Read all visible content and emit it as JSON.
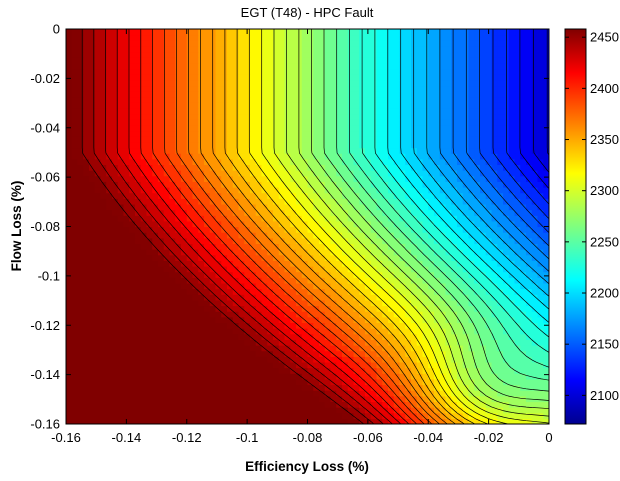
{
  "chart_data": {
    "type": "heatmap",
    "subtype": "filled-contour",
    "title": "EGT (T48) - HPC Fault",
    "xlabel": "Efficiency Loss (%)",
    "ylabel": "Flow Loss (%)",
    "xlim": [
      -0.16,
      0
    ],
    "ylim": [
      -0.16,
      0
    ],
    "x_ticks": [
      "-0.16",
      "-0.14",
      "-0.12",
      "-0.1",
      "-0.08",
      "-0.06",
      "-0.04",
      "-0.02",
      "0"
    ],
    "y_ticks": [
      "0",
      "-0.02",
      "-0.04",
      "-0.06",
      "-0.08",
      "-0.1",
      "-0.12",
      "-0.14",
      "-0.16"
    ],
    "colorbar": {
      "range": [
        2072,
        2458
      ],
      "ticks": [
        "2100",
        "2150",
        "2200",
        "2250",
        "2300",
        "2350",
        "2400",
        "2450"
      ],
      "colormap": "jet"
    },
    "contour_levels": 40,
    "grid": false
  }
}
